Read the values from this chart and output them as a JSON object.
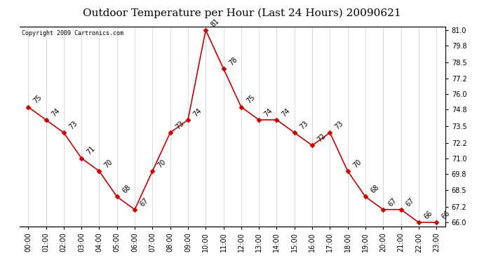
{
  "title": "Outdoor Temperature per Hour (Last 24 Hours) 20090621",
  "copyright": "Copyright 2009 Cartronics.com",
  "hours": [
    "00:00",
    "01:00",
    "02:00",
    "03:00",
    "04:00",
    "05:00",
    "06:00",
    "07:00",
    "08:00",
    "09:00",
    "10:00",
    "11:00",
    "12:00",
    "13:00",
    "14:00",
    "15:00",
    "16:00",
    "17:00",
    "18:00",
    "19:00",
    "20:00",
    "21:00",
    "22:00",
    "23:00"
  ],
  "temps": [
    75,
    74,
    73,
    71,
    70,
    68,
    67,
    70,
    73,
    74,
    81,
    78,
    75,
    74,
    74,
    73,
    72,
    73,
    70,
    68,
    67,
    67,
    66,
    66
  ],
  "line_color": "#cc0000",
  "marker_color": "#cc0000",
  "background_color": "#ffffff",
  "grid_color": "#cccccc",
  "yticks_right": [
    66.0,
    67.2,
    68.5,
    69.8,
    71.0,
    72.2,
    73.5,
    74.8,
    76.0,
    77.2,
    78.5,
    79.8,
    81.0
  ],
  "title_fontsize": 11,
  "annotation_fontsize": 7,
  "tick_fontsize": 7,
  "copyright_fontsize": 6
}
